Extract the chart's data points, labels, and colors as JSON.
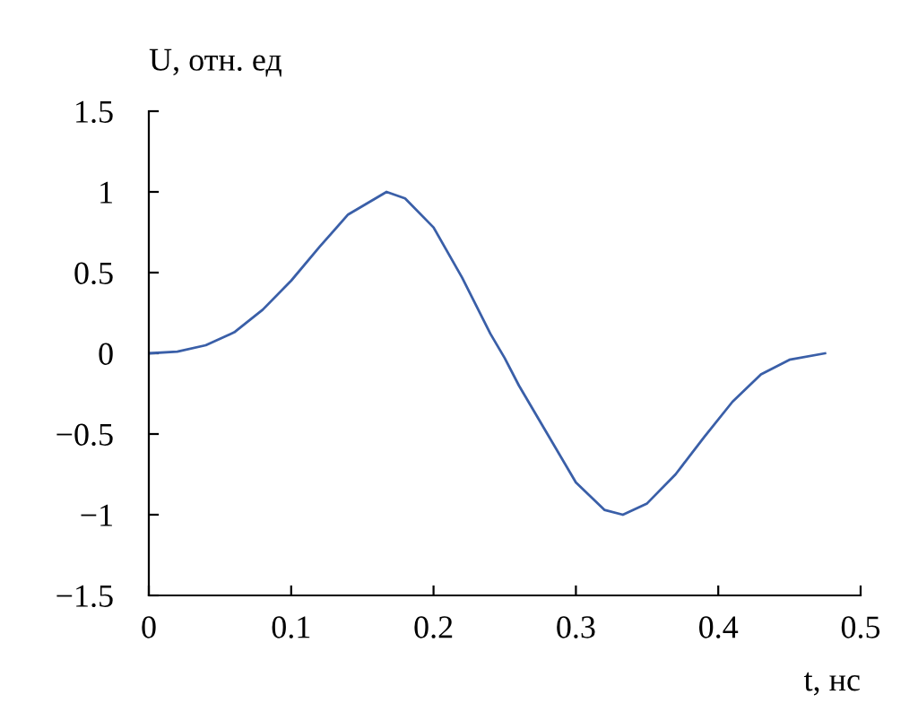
{
  "chart_data": {
    "type": "line",
    "xlabel": "t, нс",
    "ylabel": "U, отн. ед",
    "x": [
      0,
      0.02,
      0.04,
      0.06,
      0.08,
      0.1,
      0.12,
      0.14,
      0.167,
      0.18,
      0.2,
      0.22,
      0.24,
      0.25,
      0.26,
      0.28,
      0.3,
      0.32,
      0.333,
      0.35,
      0.37,
      0.39,
      0.41,
      0.43,
      0.45,
      0.475
    ],
    "series": [
      {
        "color": "#3a5fa8",
        "values": [
          0,
          0.01,
          0.05,
          0.13,
          0.27,
          0.45,
          0.66,
          0.86,
          1.0,
          0.96,
          0.78,
          0.47,
          0.12,
          -0.03,
          -0.2,
          -0.5,
          -0.8,
          -0.97,
          -1.0,
          -0.93,
          -0.75,
          -0.52,
          -0.3,
          -0.13,
          -0.04,
          0
        ]
      }
    ],
    "xlim": [
      0,
      0.5
    ],
    "xticks": [
      0,
      0.1,
      0.2,
      0.3,
      0.4,
      0.5
    ],
    "ylim": [
      -1.5,
      1.5
    ],
    "yticks": [
      {
        "value": -1.5,
        "label": "−1.5"
      },
      {
        "value": -1,
        "label": "−1"
      },
      {
        "value": -0.5,
        "label": "−0.5"
      },
      0,
      0.5,
      1,
      1.5
    ],
    "grid": false,
    "legend": false,
    "line_style": "solid"
  }
}
